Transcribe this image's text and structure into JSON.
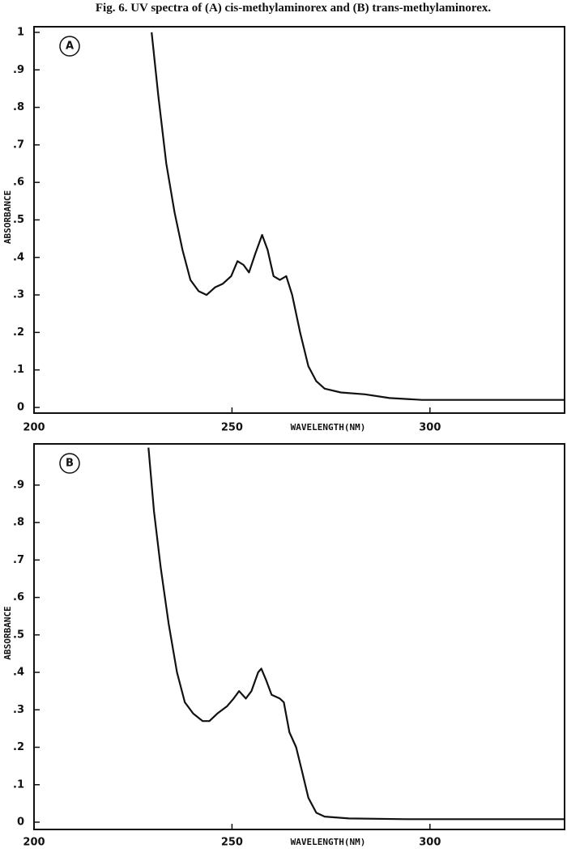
{
  "title": "Fig. 6. UV spectra of (A) cis-methylaminorex and (B) trans-methylaminorex.",
  "chart_data": [
    {
      "type": "line",
      "panel_label": "A",
      "x_label": "WAVELENGTH(NM)",
      "y_label": "ABSORBANCE",
      "x": [
        229.7,
        231.4,
        233.4,
        235.5,
        237.5,
        239.5,
        241.6,
        243.6,
        245.7,
        247.7,
        249.8,
        251.4,
        252.9,
        254.3,
        255.9,
        257.6,
        259.0,
        260.5,
        262.1,
        263.7,
        265.2,
        267.2,
        269.3,
        271.3,
        273.4,
        277.5,
        283.6,
        289.8,
        298.0,
        314.3,
        334.0
      ],
      "series": [
        {
          "color": "#111111",
          "values": [
            1.0,
            0.83,
            0.65,
            0.52,
            0.42,
            0.34,
            0.31,
            0.3,
            0.32,
            0.33,
            0.35,
            0.39,
            0.38,
            0.36,
            0.41,
            0.46,
            0.42,
            0.35,
            0.34,
            0.35,
            0.3,
            0.2,
            0.11,
            0.07,
            0.05,
            0.04,
            0.035,
            0.025,
            0.02,
            0.02,
            0.02
          ]
        }
      ],
      "xlim": [
        200,
        334
      ],
      "ylim": [
        0,
        1.015
      ],
      "xticks": [
        200,
        250,
        300
      ],
      "yticks": [
        0,
        {
          "value": 0.1,
          "label": ".1"
        },
        {
          "value": 0.2,
          "label": ".2"
        },
        {
          "value": 0.3,
          "label": ".3"
        },
        {
          "value": 0.4,
          "label": ".4"
        },
        {
          "value": 0.5,
          "label": ".5"
        },
        {
          "value": 0.6,
          "label": ".6"
        },
        {
          "value": 0.7,
          "label": ".7"
        },
        {
          "value": 0.8,
          "label": ".8"
        },
        {
          "value": 0.9,
          "label": ".9"
        },
        1
      ]
    },
    {
      "type": "line",
      "panel_label": "B",
      "x_label": "WAVELENGTH(NM)",
      "y_label": "ABSORBANCE",
      "x": [
        228.9,
        230.3,
        232.0,
        234.0,
        236.1,
        238.1,
        240.2,
        242.6,
        244.3,
        246.3,
        248.8,
        250.4,
        251.8,
        253.5,
        254.9,
        256.6,
        257.4,
        258.6,
        260.0,
        262.1,
        263.1,
        264.5,
        266.2,
        267.6,
        269.3,
        271.3,
        273.4,
        279.5,
        293.9,
        334.0
      ],
      "series": [
        {
          "color": "#111111",
          "values": [
            1.0,
            0.83,
            0.68,
            0.53,
            0.4,
            0.32,
            0.29,
            0.27,
            0.27,
            0.29,
            0.31,
            0.33,
            0.35,
            0.33,
            0.35,
            0.4,
            0.41,
            0.38,
            0.34,
            0.33,
            0.32,
            0.24,
            0.2,
            0.14,
            0.065,
            0.025,
            0.015,
            0.01,
            0.008,
            0.008
          ]
        }
      ],
      "xlim": [
        200,
        334
      ],
      "ylim": [
        0,
        1.01
      ],
      "xticks": [
        200,
        250,
        300
      ],
      "yticks": [
        0,
        {
          "value": 0.1,
          "label": ".1"
        },
        {
          "value": 0.2,
          "label": ".2"
        },
        {
          "value": 0.3,
          "label": ".3"
        },
        {
          "value": 0.4,
          "label": ".4"
        },
        {
          "value": 0.5,
          "label": ".5"
        },
        {
          "value": 0.6,
          "label": ".6"
        },
        {
          "value": 0.7,
          "label": ".7"
        },
        {
          "value": 0.8,
          "label": ".8"
        },
        {
          "value": 0.9,
          "label": ".9"
        }
      ]
    }
  ]
}
